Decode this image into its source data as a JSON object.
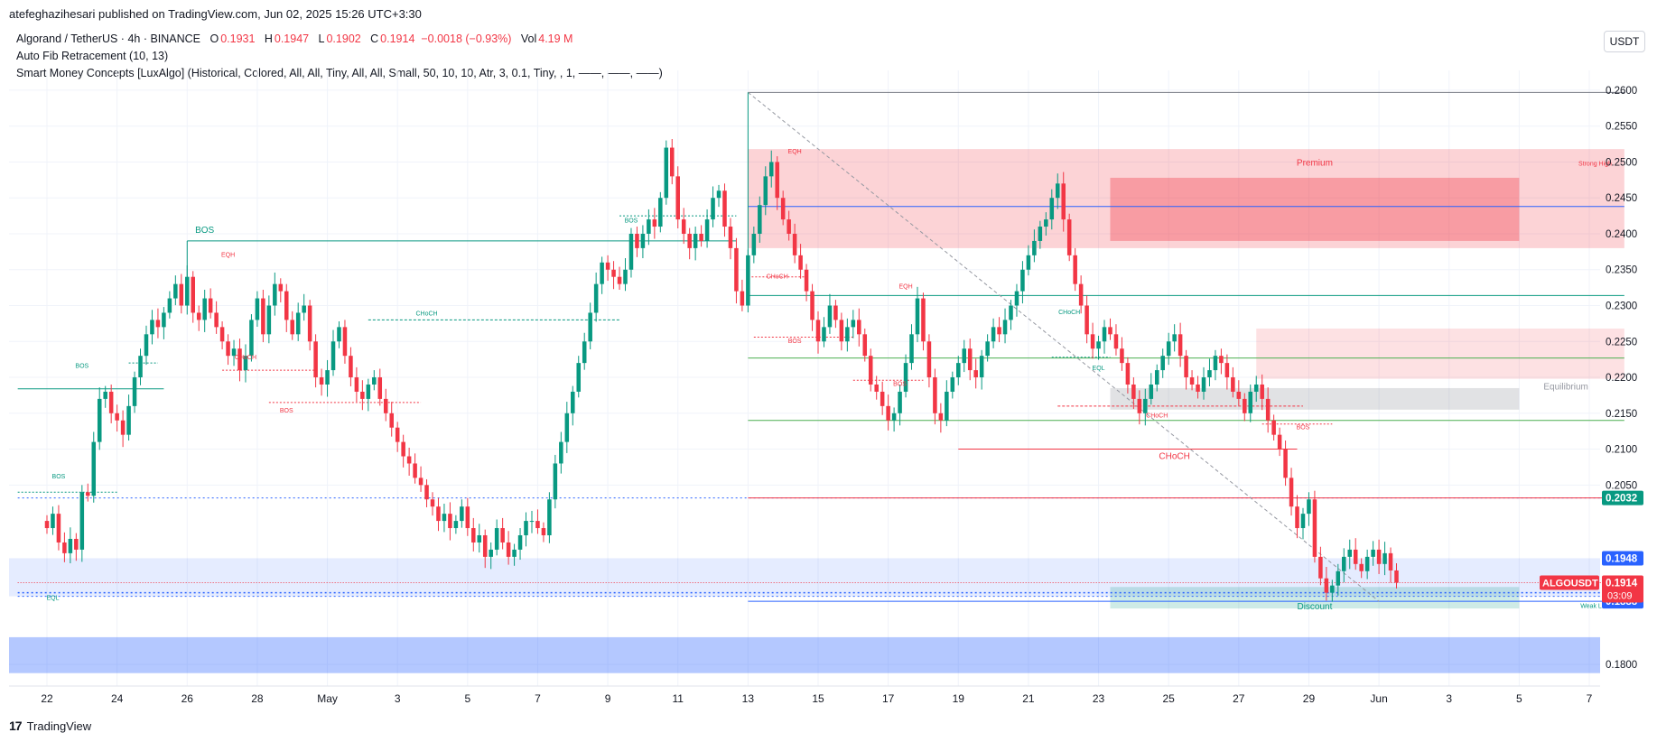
{
  "header": {
    "publish_line": "atefeghazihesari published on TradingView.com, Jun 02, 2025 15:26 UTC+3:30"
  },
  "legend": {
    "symbol": "Algorand / TetherUS · 4h · BINANCE",
    "o_label": "O",
    "o": "0.1931",
    "h_label": "H",
    "h": "0.1947",
    "l_label": "L",
    "l": "0.1902",
    "c_label": "C",
    "c": "0.1914",
    "change": "−0.0018 (−0.93%)",
    "vol_label": "Vol",
    "vol": "4.19 M",
    "indicator1": "Auto Fib Retracement (10, 13)",
    "indicator2": "Smart Money Concepts [LuxAlgo] (Historical, Colored, All, All, Tiny, All, All, Small, 50, 10, 10, Atr, 3, 0.1, Tiny, , 1, ——, ——, ——)"
  },
  "currency_button": "USDT",
  "footer": {
    "logo": "17",
    "brand": "TradingView"
  },
  "colors": {
    "up": "#089981",
    "down": "#f23645",
    "blue": "#2962ff",
    "premium": "#f23645",
    "discount": "#089981",
    "grid": "#f0f3fa"
  },
  "chart_data": {
    "type": "candlestick",
    "title": "Algorand / TetherUS · 4h · BINANCE",
    "ylim": [
      0.177,
      0.2615
    ],
    "y_ticks": [
      "0.2600",
      "0.2550",
      "0.2500",
      "0.2450",
      "0.2400",
      "0.2350",
      "0.2300",
      "0.2250",
      "0.2200",
      "0.2150",
      "0.2100",
      "0.2050",
      "0.1800"
    ],
    "x_ticks": [
      {
        "label": "22",
        "i": 0
      },
      {
        "label": "24",
        "i": 12
      },
      {
        "label": "26",
        "i": 24
      },
      {
        "label": "28",
        "i": 36
      },
      {
        "label": "May",
        "i": 48
      },
      {
        "label": "3",
        "i": 60
      },
      {
        "label": "5",
        "i": 72
      },
      {
        "label": "7",
        "i": 84
      },
      {
        "label": "9",
        "i": 96
      },
      {
        "label": "11",
        "i": 108
      },
      {
        "label": "13",
        "i": 120
      },
      {
        "label": "15",
        "i": 132
      },
      {
        "label": "17",
        "i": 144
      },
      {
        "label": "19",
        "i": 156
      },
      {
        "label": "21",
        "i": 168
      },
      {
        "label": "23",
        "i": 180
      },
      {
        "label": "25",
        "i": 192
      },
      {
        "label": "27",
        "i": 204
      },
      {
        "label": "29",
        "i": 216
      },
      {
        "label": "Jun",
        "i": 228
      },
      {
        "label": "3",
        "i": 240
      },
      {
        "label": "5",
        "i": 252
      },
      {
        "label": "7",
        "i": 264
      }
    ],
    "closes": [
      0.199,
      0.201,
      0.197,
      0.1955,
      0.1975,
      0.196,
      0.204,
      0.2035,
      0.211,
      0.217,
      0.218,
      0.215,
      0.214,
      0.212,
      0.216,
      0.22,
      0.223,
      0.226,
      0.228,
      0.227,
      0.229,
      0.231,
      0.233,
      0.23,
      0.234,
      0.229,
      0.228,
      0.231,
      0.229,
      0.227,
      0.225,
      0.223,
      0.224,
      0.221,
      0.223,
      0.228,
      0.231,
      0.226,
      0.23,
      0.233,
      0.232,
      0.228,
      0.226,
      0.229,
      0.23,
      0.225,
      0.22,
      0.219,
      0.221,
      0.225,
      0.227,
      0.223,
      0.22,
      0.218,
      0.217,
      0.219,
      0.22,
      0.217,
      0.215,
      0.213,
      0.211,
      0.209,
      0.208,
      0.206,
      0.205,
      0.203,
      0.202,
      0.2,
      0.201,
      0.199,
      0.2,
      0.202,
      0.199,
      0.197,
      0.198,
      0.195,
      0.196,
      0.199,
      0.197,
      0.195,
      0.196,
      0.198,
      0.2,
      0.2,
      0.199,
      0.198,
      0.203,
      0.208,
      0.211,
      0.215,
      0.218,
      0.222,
      0.225,
      0.229,
      0.233,
      0.236,
      0.235,
      0.234,
      0.233,
      0.235,
      0.24,
      0.238,
      0.24,
      0.242,
      0.241,
      0.245,
      0.252,
      0.248,
      0.242,
      0.24,
      0.238,
      0.24,
      0.239,
      0.242,
      0.245,
      0.246,
      0.241,
      0.238,
      0.232,
      0.23,
      0.237,
      0.24,
      0.244,
      0.248,
      0.25,
      0.245,
      0.242,
      0.24,
      0.237,
      0.235,
      0.232,
      0.228,
      0.225,
      0.227,
      0.23,
      0.228,
      0.225,
      0.227,
      0.228,
      0.226,
      0.223,
      0.219,
      0.218,
      0.216,
      0.214,
      0.215,
      0.218,
      0.222,
      0.226,
      0.231,
      0.225,
      0.22,
      0.215,
      0.214,
      0.218,
      0.22,
      0.222,
      0.224,
      0.221,
      0.22,
      0.223,
      0.225,
      0.227,
      0.226,
      0.228,
      0.23,
      0.232,
      0.235,
      0.237,
      0.239,
      0.241,
      0.242,
      0.245,
      0.247,
      0.242,
      0.237,
      0.233,
      0.23,
      0.226,
      0.224,
      0.225,
      0.227,
      0.226,
      0.224,
      0.222,
      0.219,
      0.217,
      0.215,
      0.217,
      0.219,
      0.221,
      0.223,
      0.225,
      0.226,
      0.223,
      0.22,
      0.219,
      0.218,
      0.22,
      0.221,
      0.223,
      0.222,
      0.22,
      0.218,
      0.217,
      0.215,
      0.218,
      0.219,
      0.217,
      0.214,
      0.212,
      0.21,
      0.206,
      0.202,
      0.199,
      0.201,
      0.203,
      0.195,
      0.192,
      0.19,
      0.191,
      0.193,
      0.195,
      0.196,
      0.194,
      0.193,
      0.195,
      0.196,
      0.194,
      0.1955,
      0.1931,
      0.1914
    ],
    "last_price_label": {
      "symbol": "ALGOUSDT",
      "price": "0.1914",
      "countdown": "03:09"
    },
    "price_labels": [
      {
        "price": "0.2032",
        "value": 0.2032,
        "color": "#089981"
      },
      {
        "price": "0.1948",
        "value": 0.1948,
        "color": "#2962ff"
      },
      {
        "price": "0.1895",
        "value": 0.1895,
        "color": "#2962ff"
      },
      {
        "price": "0.1888",
        "value": 0.1888,
        "color": "#2962ff"
      }
    ],
    "annotations": [
      {
        "text": "BOS",
        "i": 27,
        "v": 0.2401,
        "color": "#089981",
        "size": 10
      },
      {
        "text": "BOS",
        "i": 6,
        "v": 0.2213,
        "color": "#089981",
        "size": 7
      },
      {
        "text": "BOS",
        "i": 2,
        "v": 0.2059,
        "color": "#089981",
        "size": 7
      },
      {
        "text": "EQL",
        "i": 1,
        "v": 0.189,
        "color": "#089981",
        "size": 7
      },
      {
        "text": "EQH",
        "i": 31,
        "v": 0.2368,
        "color": "#f23645",
        "size": 7
      },
      {
        "text": "CHoCH",
        "i": 34,
        "v": 0.2225,
        "color": "#f23645",
        "size": 7
      },
      {
        "text": "BOS",
        "i": 41,
        "v": 0.2151,
        "color": "#f23645",
        "size": 7
      },
      {
        "text": "CHoCH",
        "i": 65,
        "v": 0.2286,
        "color": "#089981",
        "size": 7
      },
      {
        "text": "BOS",
        "i": 100,
        "v": 0.2416,
        "color": "#089981",
        "size": 7
      },
      {
        "text": "CHoCH",
        "i": 125,
        "v": 0.2338,
        "color": "#f23645",
        "size": 7
      },
      {
        "text": "EQH",
        "i": 128,
        "v": 0.2512,
        "color": "#f23645",
        "size": 7
      },
      {
        "text": "BOS",
        "i": 128,
        "v": 0.2248,
        "color": "#f23645",
        "size": 7
      },
      {
        "text": "EQH",
        "i": 147,
        "v": 0.2324,
        "color": "#f23645",
        "size": 7
      },
      {
        "text": "BOS",
        "i": 146,
        "v": 0.2188,
        "color": "#f23645",
        "size": 7
      },
      {
        "text": "CHoCH",
        "i": 175,
        "v": 0.2288,
        "color": "#089981",
        "size": 7
      },
      {
        "text": "EQL",
        "i": 180,
        "v": 0.221,
        "color": "#089981",
        "size": 7
      },
      {
        "text": "CHoCH",
        "i": 190,
        "v": 0.2144,
        "color": "#f23645",
        "size": 7
      },
      {
        "text": "CHoCH",
        "i": 193,
        "v": 0.2086,
        "color": "#f23645",
        "size": 10
      },
      {
        "text": "BOS",
        "i": 215,
        "v": 0.2128,
        "color": "#f23645",
        "size": 7
      },
      {
        "text": "Premium",
        "i": 217,
        "v": 0.2495,
        "color": "#f23645",
        "size": 10
      },
      {
        "text": "Strong High",
        "i": 265,
        "v": 0.2495,
        "color": "#f23645",
        "size": 7
      },
      {
        "text": "Equilibrium",
        "i": 260,
        "v": 0.2183,
        "color": "#9598a1",
        "size": 10
      },
      {
        "text": "Discount",
        "i": 217,
        "v": 0.1877,
        "color": "#089981",
        "size": 10
      },
      {
        "text": "Weak Low",
        "i": 265,
        "v": 0.1879,
        "color": "#089981",
        "size": 7
      }
    ]
  }
}
